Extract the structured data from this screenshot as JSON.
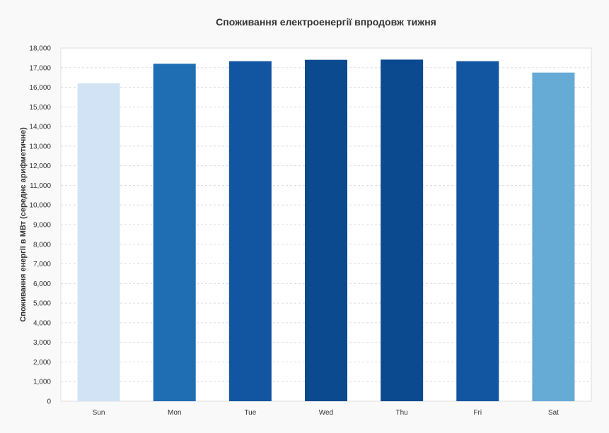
{
  "chart_data": {
    "type": "bar",
    "title": "Споживання електроенергії впродовж тижня",
    "xlabel": "",
    "ylabel": "Споживання енергії в МВт (середнє арифметичне)",
    "categories": [
      "Sun",
      "Mon",
      "Tue",
      "Wed",
      "Thu",
      "Fri",
      "Sat"
    ],
    "values": [
      16200,
      17200,
      17330,
      17400,
      17410,
      17330,
      16750
    ],
    "colors": [
      "#d2e3f5",
      "#1f6db3",
      "#1255a0",
      "#0b4a8f",
      "#0b4a8f",
      "#1255a0",
      "#66aad6"
    ],
    "ylim": [
      0,
      18000
    ],
    "ytick_step": 1000,
    "ytick_labels": [
      "0",
      "1,000",
      "2,000",
      "3,000",
      "4,000",
      "5,000",
      "6,000",
      "7,000",
      "8,000",
      "9,000",
      "10,000",
      "11,000",
      "12,000",
      "13,000",
      "14,000",
      "15,000",
      "16,000",
      "17,000",
      "18,000"
    ],
    "grid": true,
    "legend": "none"
  }
}
